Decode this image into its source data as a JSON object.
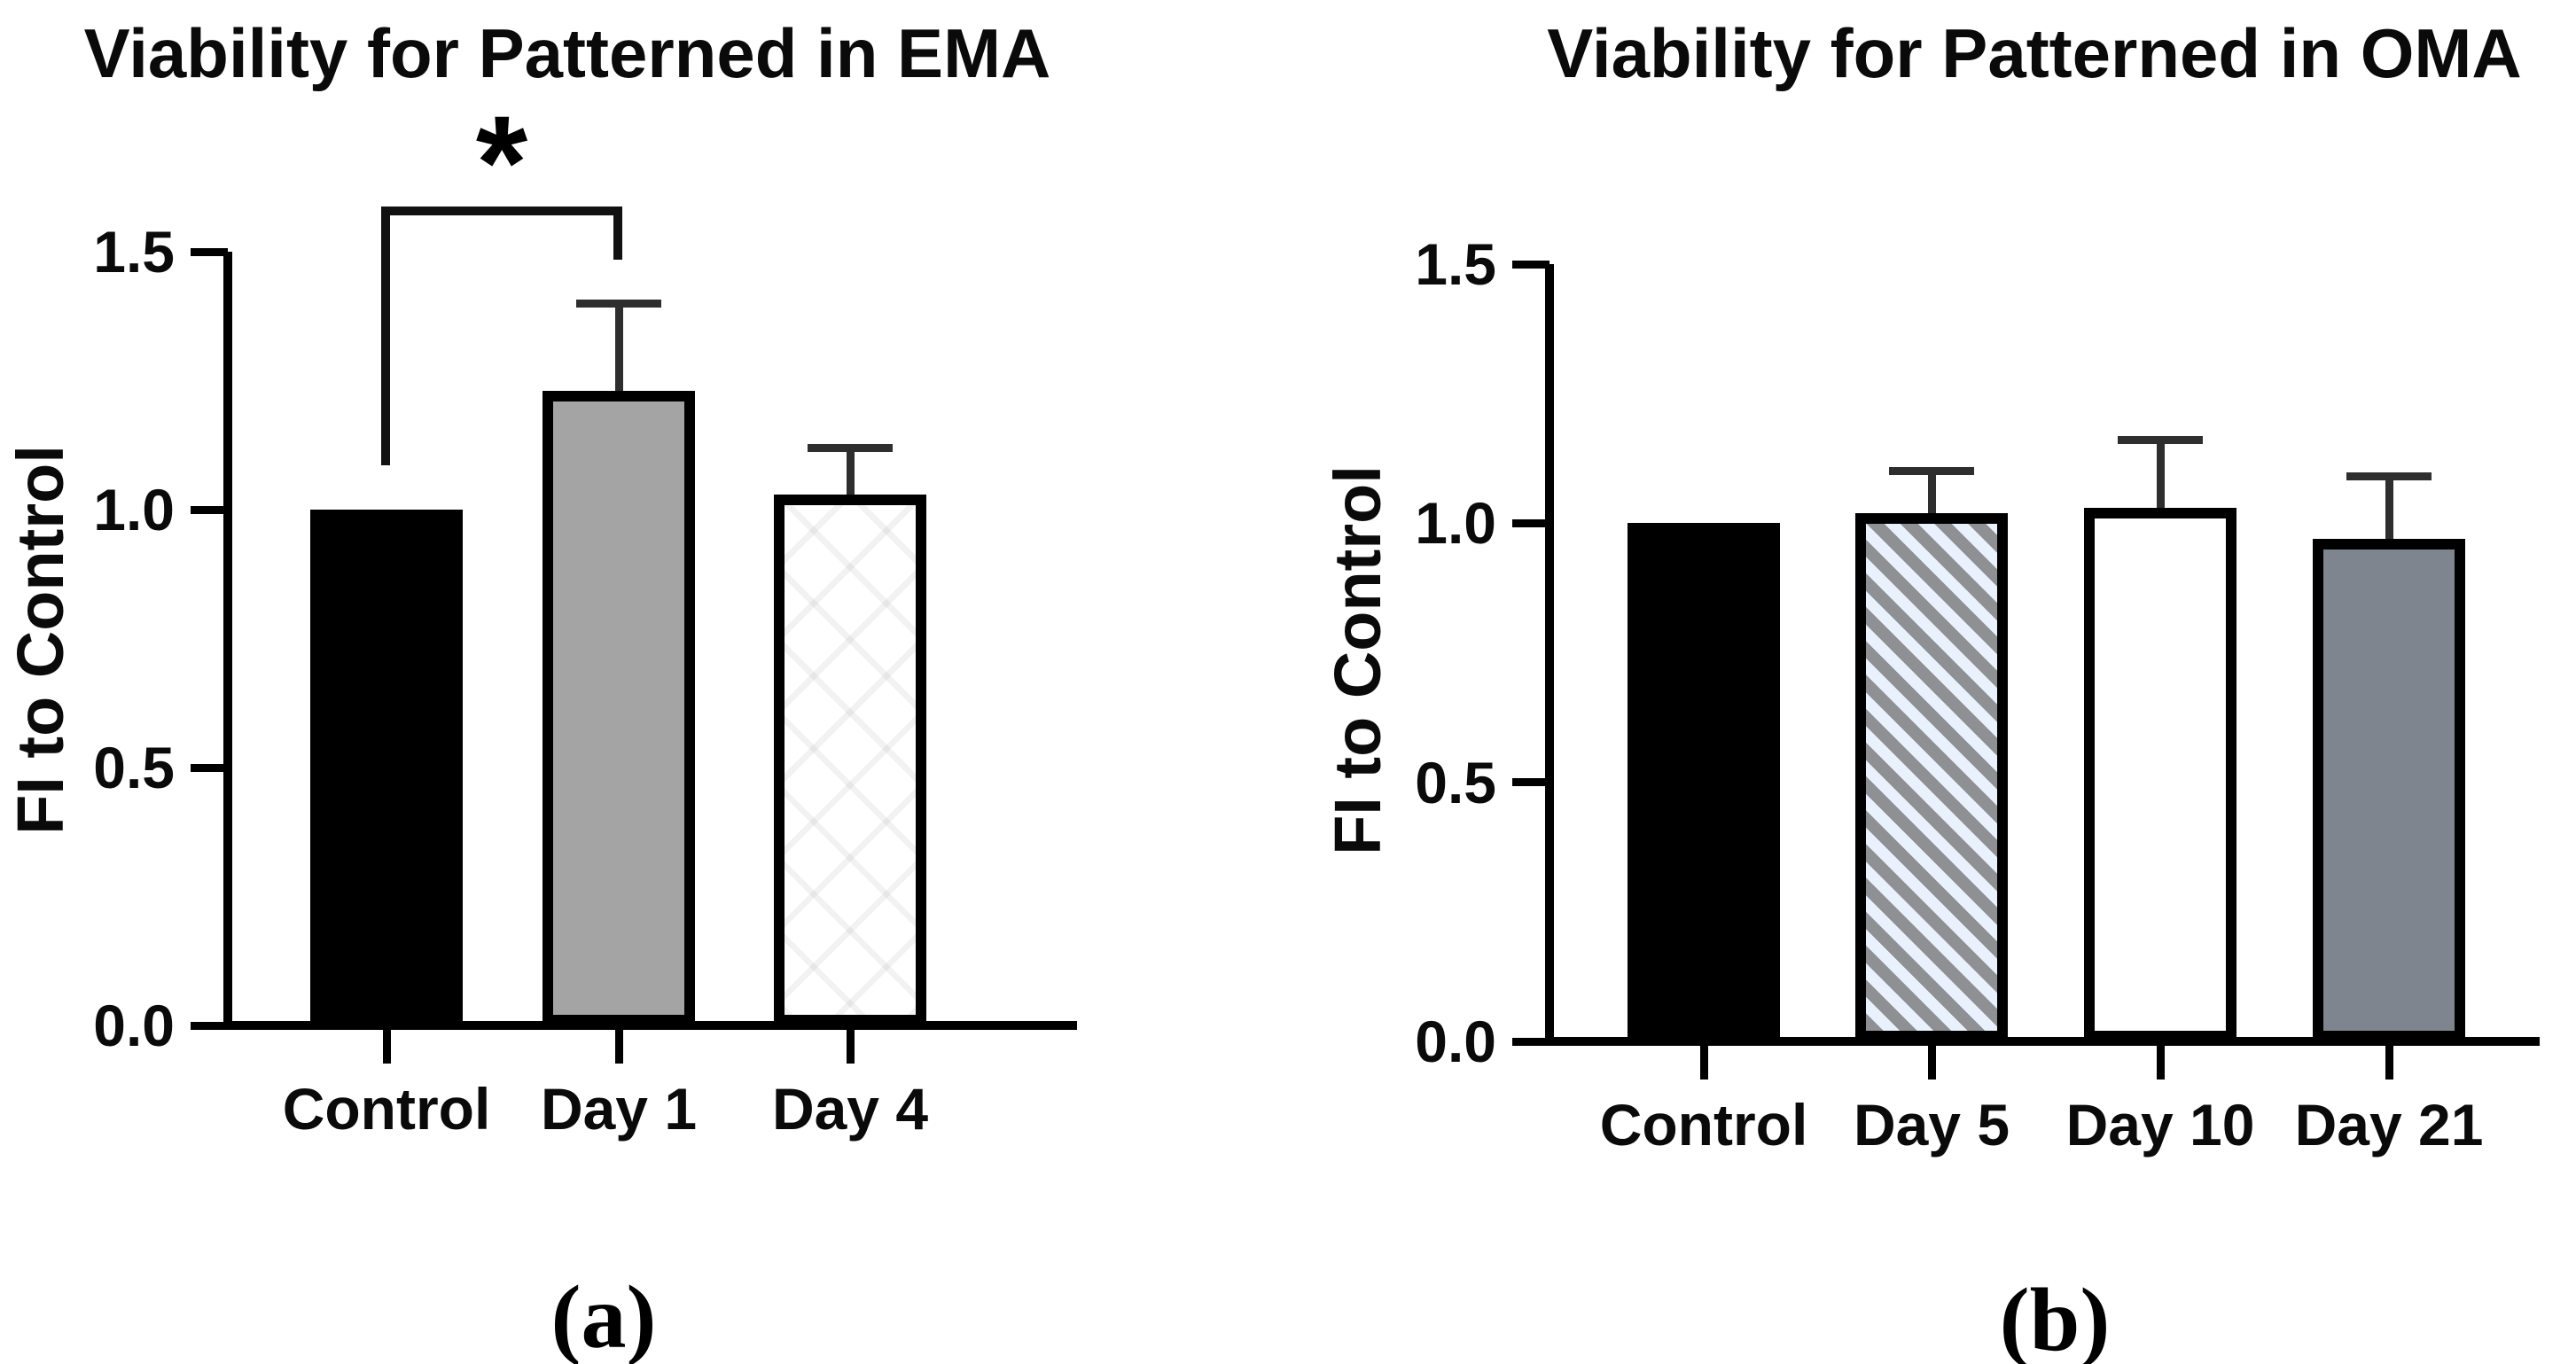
{
  "figure": {
    "background": "#ffffff",
    "captions": {
      "a": "(a)",
      "b": "(b)"
    }
  },
  "chart_data": [
    {
      "id": "a",
      "type": "bar",
      "title": "Viability for Patterned in EMA",
      "xlabel": "",
      "ylabel": "FI to Control",
      "ylim": [
        0,
        1.5
      ],
      "yticks": [
        "0.0",
        "0.5",
        "1.0",
        "1.5"
      ],
      "grid": false,
      "legend": null,
      "categories": [
        "Control",
        "Day 1",
        "Day 4"
      ],
      "values": [
        1.0,
        1.23,
        1.03
      ],
      "error_top": [
        null,
        1.4,
        1.12
      ],
      "bar_styles": [
        "solid-black",
        "solid-gray",
        "diamond-white"
      ],
      "bar_colors": [
        "#000000",
        "#a4a4a4",
        "#ffffff"
      ],
      "significance": {
        "from": "Control",
        "to": "Day 1",
        "label": "*"
      },
      "caption": "(a)"
    },
    {
      "id": "b",
      "type": "bar",
      "title": "Viability for Patterned in OMA",
      "xlabel": "",
      "ylabel": "FI to Control",
      "ylim": [
        0,
        1.5
      ],
      "yticks": [
        "0.0",
        "0.5",
        "1.0",
        "1.5"
      ],
      "grid": false,
      "legend": null,
      "categories": [
        "Control",
        "Day 5",
        "Day 10",
        "Day 21"
      ],
      "values": [
        1.0,
        1.02,
        1.03,
        0.97
      ],
      "error_top": [
        null,
        1.1,
        1.16,
        1.09
      ],
      "bar_styles": [
        "solid-black",
        "stripe-blue",
        "solid-white",
        "solid-darkgray"
      ],
      "bar_colors": [
        "#000000",
        "#e9f1fc",
        "#ffffff",
        "#7f858e"
      ],
      "stripe_color": "#8e9094",
      "significance": null,
      "caption": "(b)"
    }
  ]
}
